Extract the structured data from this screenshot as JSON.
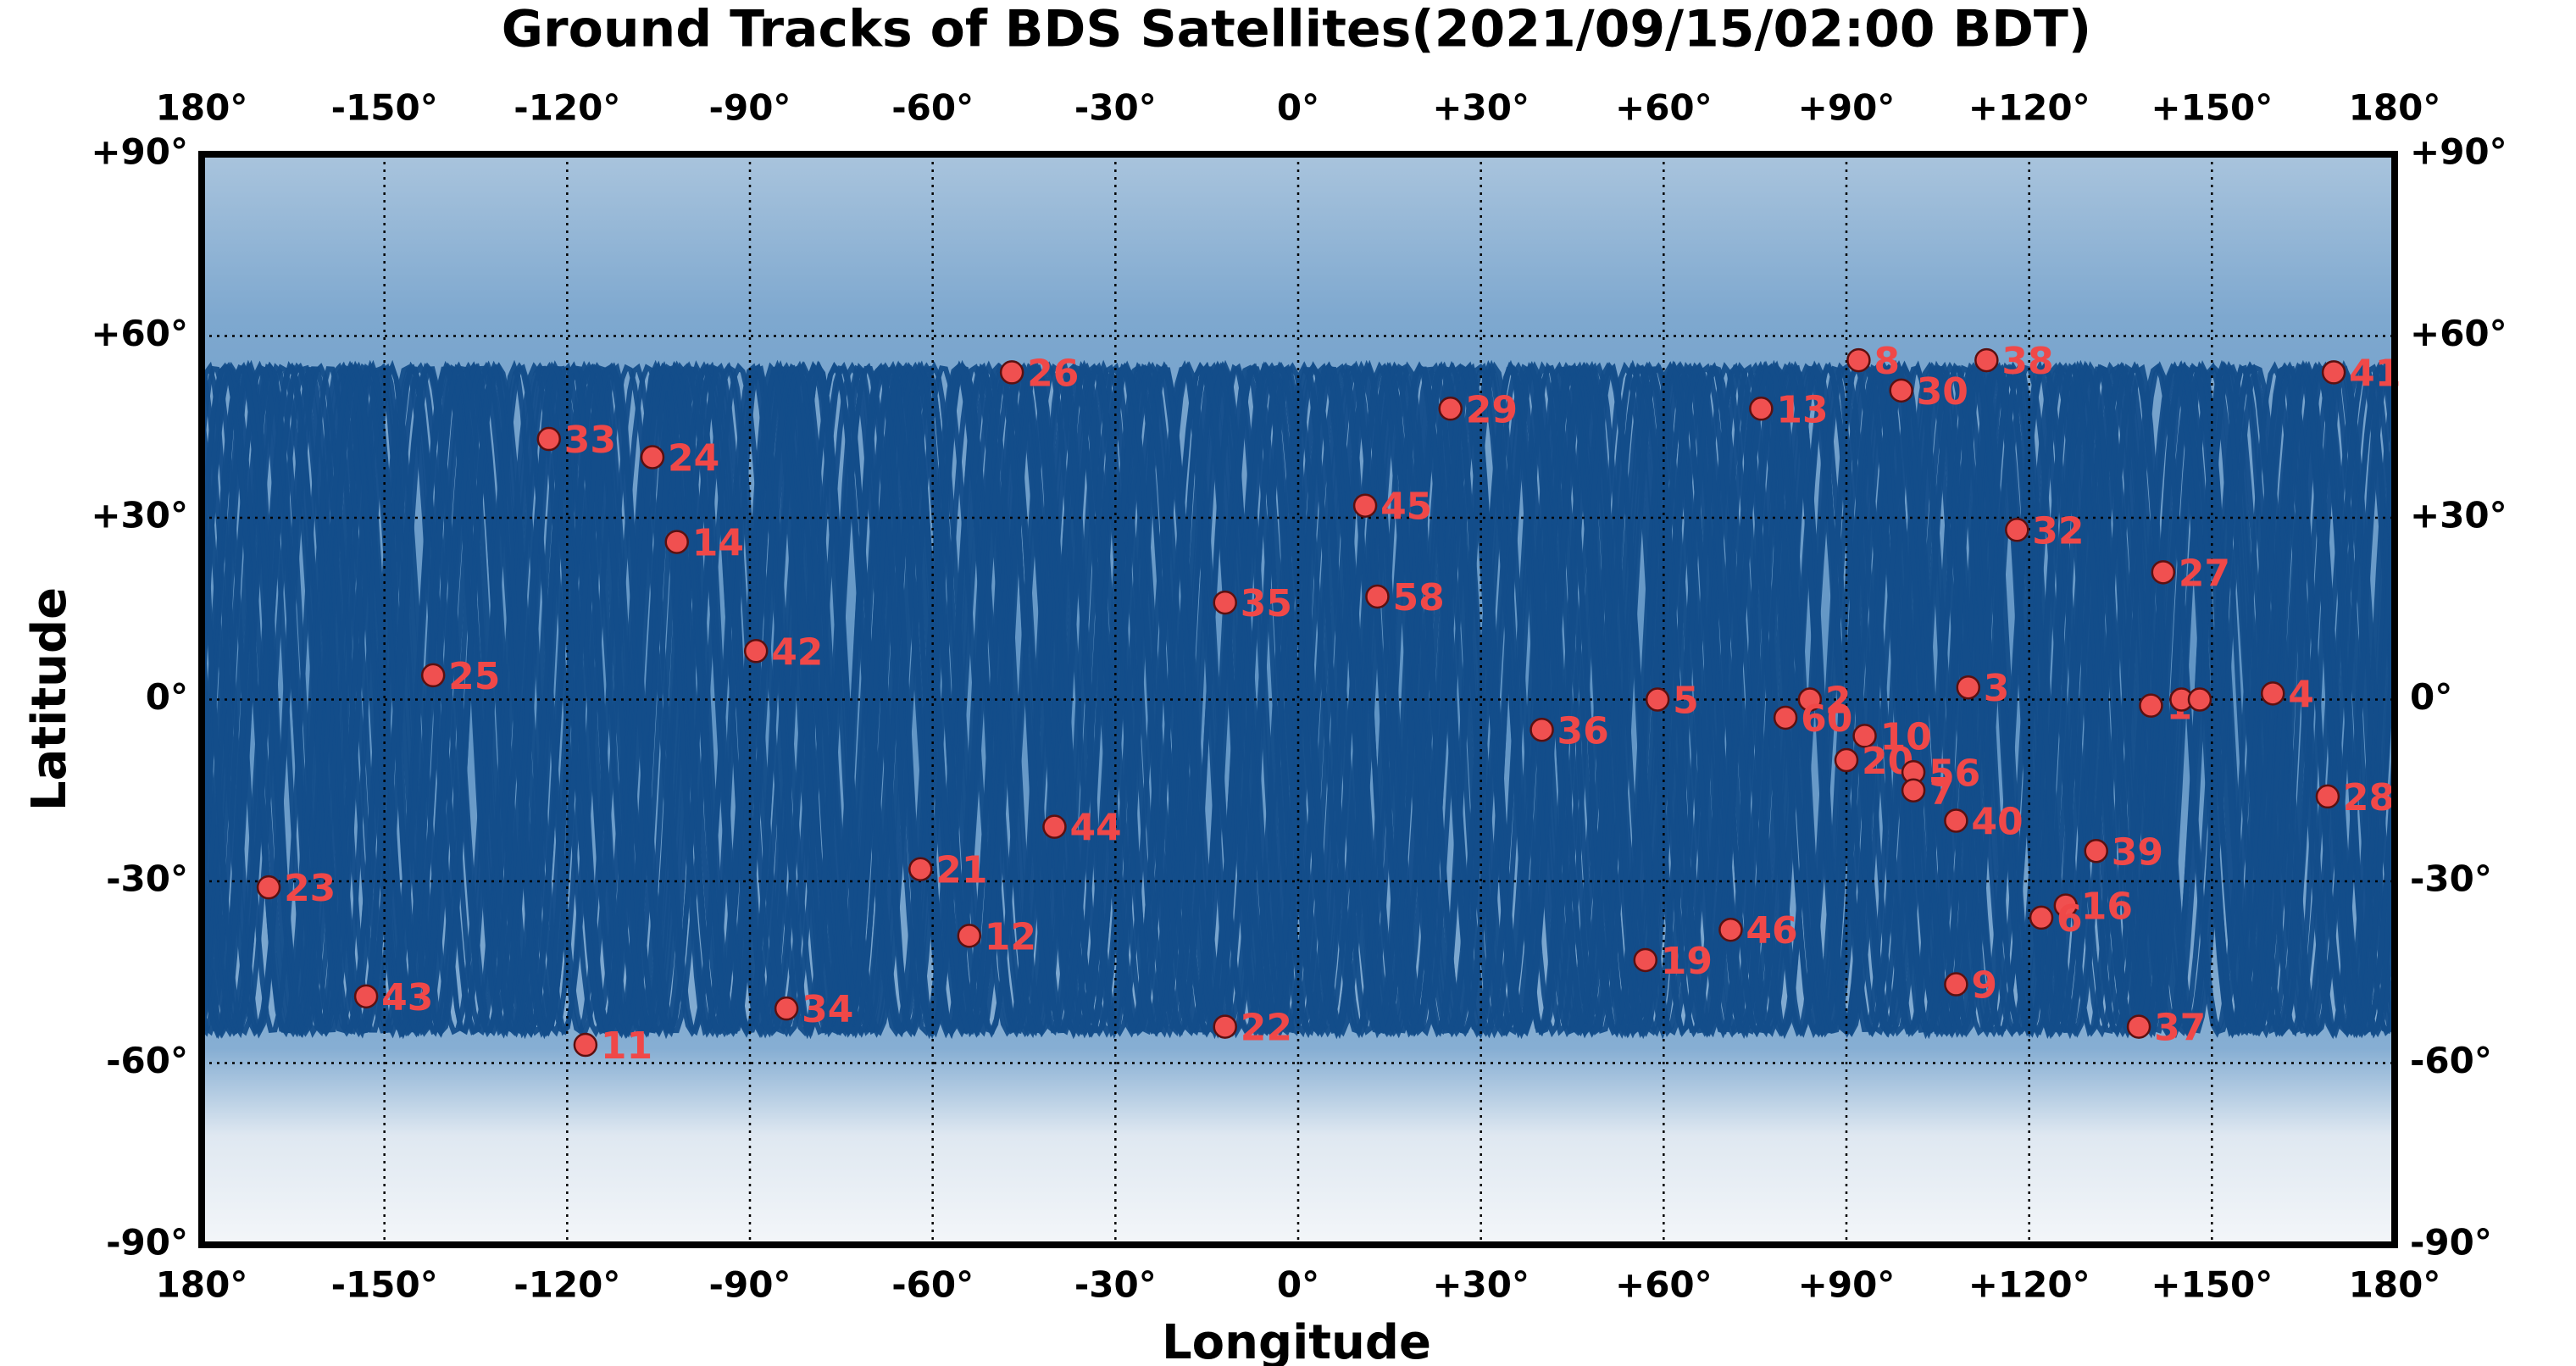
{
  "chart_data": {
    "type": "scatter",
    "title": "Ground Tracks of BDS Satellites(2021/09/15/02:00 BDT)",
    "xlabel": "Longitude",
    "ylabel": "Latitude",
    "x": [
      -47,
      -123,
      -106,
      -102,
      -89,
      -142,
      -169,
      -153,
      -117,
      -84,
      -62,
      -54,
      -40,
      -12,
      -12,
      11,
      13,
      25,
      40,
      59,
      57,
      71,
      76,
      92,
      99,
      113,
      84,
      80,
      93,
      90,
      101,
      101,
      110,
      108,
      118,
      108,
      131,
      126,
      122,
      142,
      138,
      160,
      170,
      169,
      140,
      145,
      148
    ],
    "values": [
      54,
      43,
      40,
      26,
      8,
      4,
      -31,
      -49,
      -57,
      -51,
      -28,
      -39,
      -21,
      -54,
      16,
      32,
      17,
      48,
      -5,
      0,
      -43,
      -38,
      48,
      56,
      51,
      56,
      0,
      -3,
      -6,
      -10,
      -12,
      -15,
      2,
      -20,
      28,
      -47,
      -25,
      -34,
      -36,
      21,
      -54,
      1,
      54,
      -16,
      -1,
      0,
      0
    ],
    "point_labels": [
      "26",
      "33",
      "24",
      "14",
      "42",
      "25",
      "23",
      "43",
      "11",
      "34",
      "21",
      "12",
      "44",
      "22",
      "35",
      "45",
      "58",
      "29",
      "36",
      "5",
      "19",
      "46",
      "13",
      "8",
      "30",
      "38",
      "2",
      "60",
      "10",
      "20",
      "56",
      "7",
      "3",
      "40",
      "32",
      "9",
      "39",
      "16",
      "6",
      "27",
      "37",
      "4",
      "41",
      "28",
      "1",
      null,
      null
    ],
    "color": "#f05050",
    "label_color": "#f04848",
    "track_color": "#134d8a",
    "xlim": [
      -180,
      180
    ],
    "ylim": [
      -90,
      90
    ],
    "xticks": [
      {
        "value": -180,
        "label": "180°"
      },
      {
        "value": -150,
        "label": "-150°"
      },
      {
        "value": -120,
        "label": "-120°"
      },
      {
        "value": -90,
        "label": "-90°"
      },
      {
        "value": -60,
        "label": "-60°"
      },
      {
        "value": -30,
        "label": "-30°"
      },
      {
        "value": 0,
        "label": "0°"
      },
      {
        "value": 30,
        "label": "+30°"
      },
      {
        "value": 60,
        "label": "+60°"
      },
      {
        "value": 90,
        "label": "+90°"
      },
      {
        "value": 120,
        "label": "+120°"
      },
      {
        "value": 150,
        "label": "+150°"
      },
      {
        "value": 180,
        "label": "180°"
      }
    ],
    "yticks": [
      {
        "value": -90,
        "label": "-90°"
      },
      {
        "value": -60,
        "label": "-60°"
      },
      {
        "value": -30,
        "label": "-30°"
      },
      {
        "value": 0,
        "label": "0°"
      },
      {
        "value": 30,
        "label": "+30°"
      },
      {
        "value": 60,
        "label": "+60°"
      },
      {
        "value": 90,
        "label": "+90°"
      }
    ],
    "grid": true
  }
}
